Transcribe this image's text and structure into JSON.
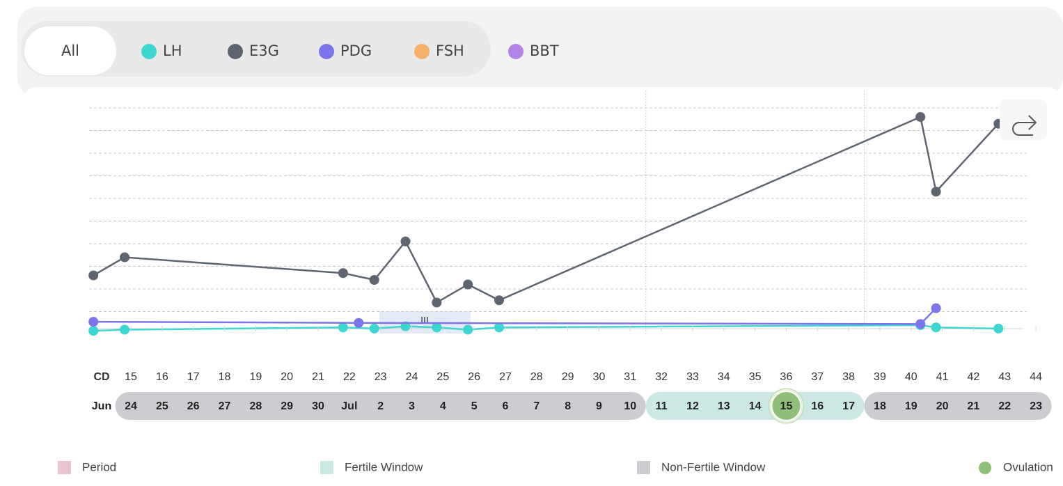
{
  "chart_data": {
    "type": "line",
    "filter_all_label": "All",
    "series": [
      {
        "name": "LH",
        "color": "#3ed6d0",
        "x": [
          14,
          15,
          22,
          23,
          24,
          25,
          26,
          27,
          40.5,
          41,
          43
        ],
        "values": [
          0.15,
          0.2,
          0.3,
          0.25,
          0.35,
          0.3,
          0.2,
          0.3,
          0.4,
          0.3,
          0.25
        ]
      },
      {
        "name": "E3G",
        "color": "#5f6570",
        "x": [
          14,
          15,
          22,
          23,
          24,
          25,
          26,
          27,
          40.5,
          41,
          43
        ],
        "values": [
          2.6,
          3.4,
          2.7,
          2.4,
          4.1,
          1.4,
          2.2,
          1.5,
          9.6,
          6.3,
          9.3
        ]
      },
      {
        "name": "PDG",
        "color": "#7b74ea",
        "x": [
          14,
          22.5,
          40.5,
          41
        ],
        "values": [
          0.55,
          0.5,
          0.45,
          1.15
        ]
      },
      {
        "name": "FSH",
        "color": "#f5b06b",
        "x": [],
        "values": []
      },
      {
        "name": "BBT",
        "color": "#b385e6",
        "x": [],
        "values": []
      }
    ],
    "xlim": [
      14,
      44
    ],
    "ylim": [
      0,
      10
    ],
    "yticks": [
      1,
      2,
      3,
      4,
      5,
      6,
      7,
      8,
      9,
      10
    ],
    "grid": true,
    "x_label": "CD",
    "xticks": [
      15,
      16,
      17,
      18,
      19,
      20,
      21,
      22,
      23,
      24,
      25,
      26,
      27,
      28,
      29,
      30,
      31,
      32,
      33,
      34,
      35,
      36,
      37,
      38,
      39,
      40,
      41,
      42,
      43,
      44
    ],
    "date_row_label": "Jun",
    "dates": [
      "24",
      "25",
      "26",
      "27",
      "28",
      "29",
      "30",
      "Jul",
      "2",
      "3",
      "4",
      "5",
      "6",
      "7",
      "8",
      "9",
      "10",
      "11",
      "12",
      "13",
      "14",
      "15",
      "16",
      "17",
      "18",
      "19",
      "20",
      "21",
      "22",
      "23"
    ],
    "bands": [
      {
        "start": 15,
        "end": 31,
        "color": "#cbcdd0"
      },
      {
        "start": 32,
        "end": 38,
        "color": "#cce8e4"
      },
      {
        "start": 39,
        "end": 44,
        "color": "#cbcdd0"
      }
    ],
    "ovulation_day": 36,
    "ovulation_color": "#8fbf78",
    "legend": [
      {
        "label": "Period",
        "color": "#e8c4cf"
      },
      {
        "label": "Fertile Window",
        "color": "#cce8e4"
      },
      {
        "label": "Non-Fertile Window",
        "color": "#cbcdd0"
      },
      {
        "label": "Ovulation",
        "color": "#8fbf78"
      }
    ]
  }
}
